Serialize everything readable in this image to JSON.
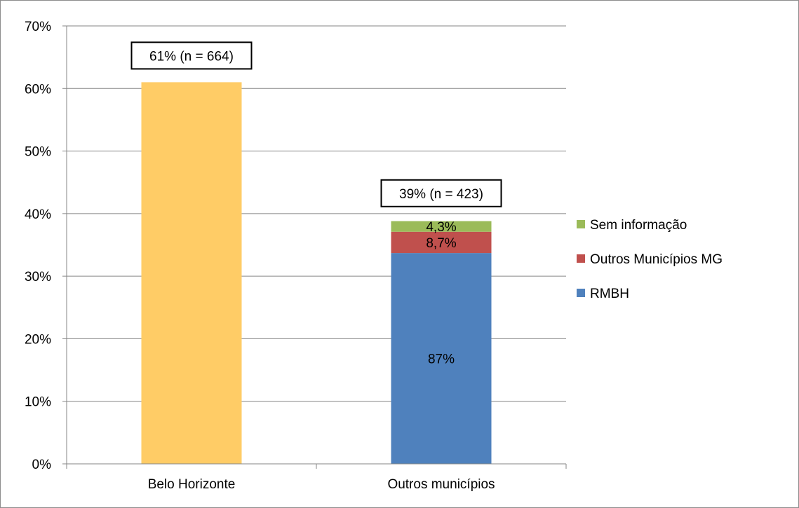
{
  "chart_data": {
    "type": "bar",
    "stacked": true,
    "categories": [
      "Belo Horizonte",
      "Outros municípios"
    ],
    "ylim": [
      0,
      0.7
    ],
    "yticks": [
      0,
      0.1,
      0.2,
      0.3,
      0.4,
      0.5,
      0.6,
      0.7
    ],
    "ytick_labels": [
      "0%",
      "10%",
      "20%",
      "30%",
      "40%",
      "50%",
      "60%",
      "70%"
    ],
    "grid": true,
    "legend_position": "right",
    "title": "",
    "xlabel": "",
    "ylabel": "",
    "series": [
      {
        "category": "Belo Horizonte",
        "name": "",
        "value": 0.61,
        "color": "#FFCC66",
        "label": ""
      },
      {
        "category": "Outros municípios",
        "name": "RMBH",
        "value": 0.337,
        "color": "#4F81BD",
        "label": "87%"
      },
      {
        "category": "Outros municípios",
        "name": "Outros Municípios MG",
        "value": 0.034,
        "color": "#C0504D",
        "label": "8,7%"
      },
      {
        "category": "Outros municípios",
        "name": "Sem informação",
        "value": 0.017,
        "color": "#9BBB59",
        "label": "4,3%"
      }
    ],
    "totals": [
      {
        "category": "Belo Horizonte",
        "value": 0.61,
        "label": "61% (n = 664)"
      },
      {
        "category": "Outros municípios",
        "value": 0.39,
        "label": "39% (n = 423)"
      }
    ],
    "legend": [
      {
        "name": "Sem informação",
        "color": "#9BBB59"
      },
      {
        "name": "Outros Municípios MG",
        "color": "#C0504D"
      },
      {
        "name": "RMBH",
        "color": "#4F81BD"
      }
    ],
    "gridline_color": "#868686",
    "axis_color": "#868686"
  }
}
